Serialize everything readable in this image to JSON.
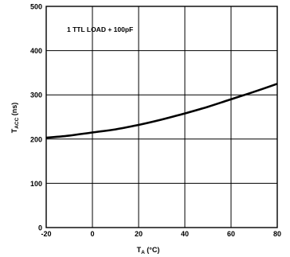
{
  "chart_data": {
    "type": "line",
    "annotation": "1 TTL LOAD + 100pF",
    "xlabel": {
      "main": "T",
      "sub": "A",
      "unit": " (°C)"
    },
    "ylabel": {
      "main": "T",
      "sub": "ACC",
      "unit": " (ns)"
    },
    "xlim": [
      -20,
      80
    ],
    "ylim": [
      0,
      500
    ],
    "xticks": [
      -20,
      0,
      20,
      40,
      60,
      80
    ],
    "yticks": [
      0,
      100,
      200,
      300,
      400,
      500
    ],
    "grid": true,
    "series": [
      {
        "x": [
          -20,
          -10,
          0,
          10,
          20,
          30,
          40,
          50,
          60,
          70,
          80
        ],
        "y": [
          203,
          208,
          215,
          222,
          232,
          244,
          258,
          273,
          290,
          307,
          325
        ]
      }
    ]
  }
}
